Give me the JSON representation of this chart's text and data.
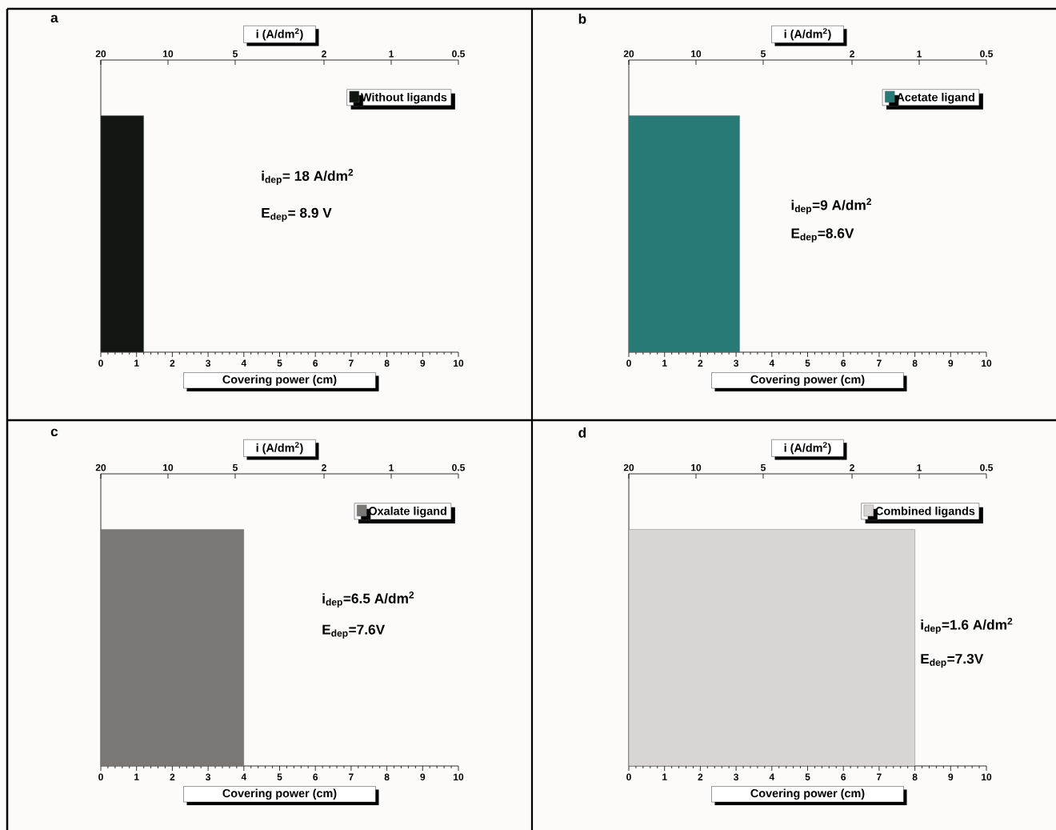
{
  "chart_data": [
    {
      "type": "bar",
      "title": "a",
      "orientation": "horizontal",
      "categories": [
        null
      ],
      "series": [
        {
          "name": "Without ligands",
          "color": "#111611",
          "values": [
            1.2
          ]
        }
      ],
      "xlim": [
        0,
        10
      ],
      "xticks": [
        0,
        1,
        2,
        3,
        4,
        5,
        6,
        7,
        8,
        9,
        10
      ],
      "xlabel": "Covering power (cm)",
      "x2label": "i (A/dm$^{2}$)",
      "x2lim": [
        20,
        0.5
      ],
      "x2ticks": [
        20,
        10,
        5,
        2,
        1,
        0.5
      ],
      "log": "x2",
      "legend": "top right",
      "annotations": [
        "i$_{dep}$= 18 A/dm$^{2}$",
        "E$_{dep}$= 8.9 V"
      ]
    },
    {
      "type": "bar",
      "title": "b",
      "orientation": "horizontal",
      "categories": [
        null
      ],
      "series": [
        {
          "name": "Acetate ligand",
          "color": "#287a76",
          "values": [
            3.1
          ]
        }
      ],
      "xlim": [
        0,
        10
      ],
      "xticks": [
        0,
        1,
        2,
        3,
        4,
        5,
        6,
        7,
        8,
        9,
        10
      ],
      "xlabel": "Covering power (cm)",
      "x2label": "i (A/dm$^{2}$)",
      "x2lim": [
        20,
        0.5
      ],
      "x2ticks": [
        20,
        10,
        5,
        2,
        1,
        0.5
      ],
      "log": "x2",
      "legend": "top right",
      "annotations": [
        "i$_{dep}$=9 A/dm$^{2}$",
        "E$_{dep}$=8.6V"
      ]
    },
    {
      "type": "bar",
      "title": "c",
      "orientation": "horizontal",
      "categories": [
        null
      ],
      "series": [
        {
          "name": "Oxalate ligand",
          "color": "#7a7775",
          "values": [
            4.0
          ]
        }
      ],
      "xlim": [
        0,
        10
      ],
      "xticks": [
        0,
        1,
        2,
        3,
        4,
        5,
        6,
        7,
        8,
        9,
        10
      ],
      "xlabel": "Covering power (cm)",
      "x2label": "i (A/dm$^{2}$)",
      "x2lim": [
        20,
        0.5
      ],
      "x2ticks": [
        20,
        10,
        5,
        2,
        1,
        0.5
      ],
      "log": "x2",
      "legend": "top right",
      "annotations": [
        "i$_{dep}$=6.5 A/dm$^{2}$",
        "E$_{dep}$=7.6V"
      ]
    },
    {
      "type": "bar",
      "title": "d",
      "orientation": "horizontal",
      "categories": [
        null
      ],
      "series": [
        {
          "name": "Combined ligands",
          "color": "#d8d5d4",
          "values": [
            8.0
          ]
        }
      ],
      "xlim": [
        0,
        10
      ],
      "xticks": [
        0,
        1,
        2,
        3,
        4,
        5,
        6,
        7,
        8,
        9,
        10
      ],
      "xlabel": "Covering power (cm)",
      "x2label": "i (A/dm$^{2}$)",
      "x2lim": [
        20,
        0.5
      ],
      "x2ticks": [
        20,
        10,
        5,
        2,
        1,
        0.5
      ],
      "log": "x2",
      "legend": "top right",
      "annotations": [
        "i$_{dep}$=1.6 A/dm$^{2}$",
        "E$_{dep}$=7.3V"
      ]
    }
  ]
}
